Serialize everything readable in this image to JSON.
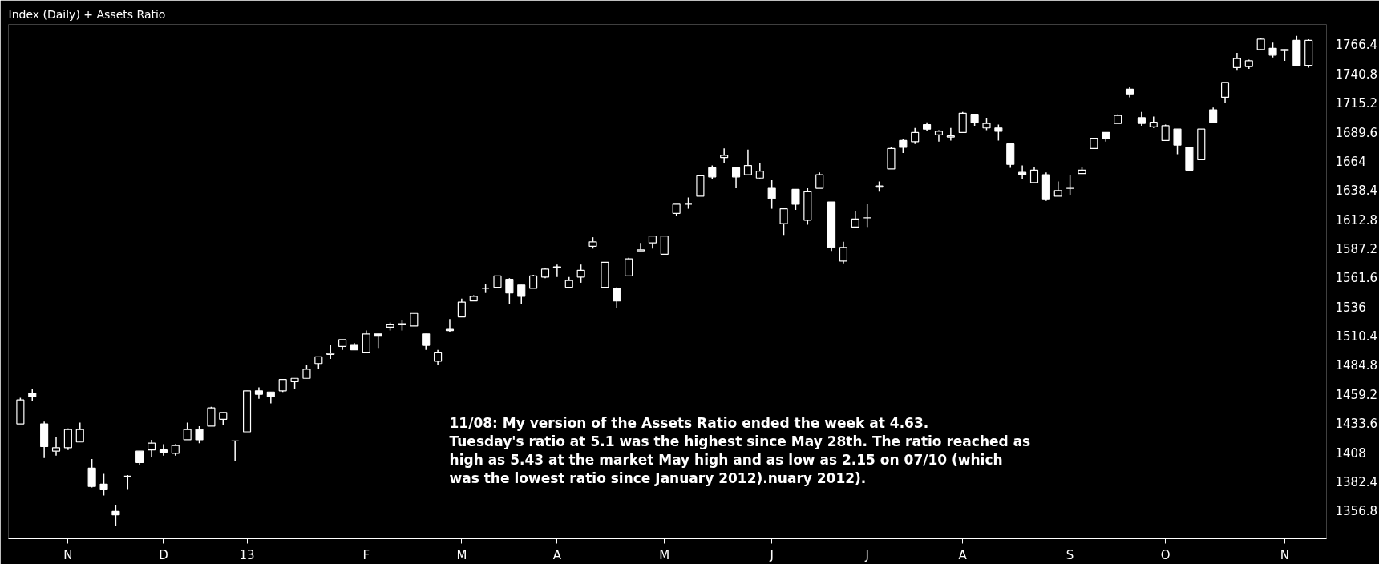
{
  "chart_data": {
    "type": "candlestick",
    "title": "Index (Daily) + Assets Ratio",
    "annotations": [
      "11/08: My version of the Assets Ratio ended the week at 4.63.\nTuesday's ratio at 5.1 was the highest since May 28th. The ratio reached as\nhigh as 5.43 at the market May high and as low as 2.15 on 07/10 (which\nwas the lowest ratio since January 2012).nuary 2012)."
    ],
    "color": "#ffffff",
    "categories": [
      null,
      null,
      null,
      null,
      "N",
      null,
      null,
      null,
      null,
      null,
      null,
      null,
      "D",
      null,
      null,
      null,
      null,
      null,
      null,
      "13",
      null,
      null,
      null,
      null,
      null,
      null,
      null,
      null,
      null,
      "F",
      null,
      null,
      null,
      null,
      null,
      null,
      null,
      "M",
      null,
      null,
      null,
      null,
      null,
      null,
      null,
      "A",
      null,
      null,
      null,
      null,
      null,
      null,
      null,
      null,
      "M",
      null,
      null,
      null,
      null,
      null,
      null,
      null,
      null,
      "J",
      null,
      null,
      null,
      null,
      null,
      null,
      null,
      "J",
      null,
      null,
      null,
      null,
      null,
      null,
      null,
      "A",
      null,
      null,
      null,
      null,
      null,
      null,
      null,
      null,
      "S",
      null,
      null,
      null,
      null,
      null,
      null,
      null,
      "O",
      null,
      null,
      null,
      null,
      null,
      null,
      null,
      null,
      null,
      "N",
      null,
      null
    ],
    "ohlc": [
      [
        1433,
        1456,
        1433,
        1454
      ],
      [
        1460,
        1464,
        1453,
        1457
      ],
      [
        1433,
        1435,
        1403,
        1413
      ],
      [
        1409,
        1421,
        1405,
        1412
      ],
      [
        1412,
        1429,
        1410,
        1428
      ],
      [
        1417,
        1434,
        1417,
        1428
      ],
      [
        1394,
        1402,
        1377,
        1378
      ],
      [
        1380,
        1389,
        1370,
        1375
      ],
      [
        1356,
        1362,
        1343,
        1353
      ],
      [
        1387,
        1388,
        1375,
        1387
      ],
      [
        1409,
        1409,
        1397,
        1399
      ],
      [
        1410,
        1419,
        1404,
        1416
      ],
      [
        1410,
        1415,
        1405,
        1408
      ],
      [
        1407,
        1415,
        1405,
        1414
      ],
      [
        1419,
        1434,
        1419,
        1428
      ],
      [
        1428,
        1431,
        1416,
        1419
      ],
      [
        1431,
        1448,
        1431,
        1447
      ],
      [
        1437,
        1443,
        1432,
        1443
      ],
      [
        1418,
        1418,
        1400,
        1418
      ],
      [
        1426,
        1462,
        1426,
        1462
      ],
      [
        1462,
        1465,
        1455,
        1459
      ],
      [
        1461,
        1461,
        1451,
        1457
      ],
      [
        1462,
        1472,
        1461,
        1472
      ],
      [
        1470,
        1473,
        1464,
        1473
      ],
      [
        1473,
        1485,
        1473,
        1481
      ],
      [
        1486,
        1492,
        1481,
        1492
      ],
      [
        1494,
        1502,
        1490,
        1495
      ],
      [
        1501,
        1507,
        1498,
        1507
      ],
      [
        1502,
        1504,
        1498,
        1498
      ],
      [
        1496,
        1515,
        1496,
        1512
      ],
      [
        1512,
        1512,
        1499,
        1510
      ],
      [
        1518,
        1522,
        1515,
        1520
      ],
      [
        1520,
        1524,
        1515,
        1521
      ],
      [
        1519,
        1530,
        1519,
        1530
      ],
      [
        1512,
        1512,
        1498,
        1502
      ],
      [
        1488,
        1498,
        1485,
        1496
      ],
      [
        1516,
        1525,
        1514,
        1515
      ],
      [
        1527,
        1543,
        1527,
        1540
      ],
      [
        1541,
        1546,
        1541,
        1545
      ],
      [
        1552,
        1556,
        1548,
        1552
      ],
      [
        1553,
        1563,
        1553,
        1563
      ],
      [
        1560,
        1561,
        1538,
        1548
      ],
      [
        1555,
        1555,
        1538,
        1545
      ],
      [
        1552,
        1564,
        1552,
        1563
      ],
      [
        1562,
        1570,
        1561,
        1569
      ],
      [
        1571,
        1573,
        1562,
        1570
      ],
      [
        1553,
        1562,
        1553,
        1559
      ],
      [
        1562,
        1573,
        1557,
        1568
      ],
      [
        1589,
        1597,
        1587,
        1593
      ],
      [
        1553,
        1575,
        1553,
        1575
      ],
      [
        1552,
        1553,
        1535,
        1541
      ],
      [
        1563,
        1579,
        1563,
        1578
      ],
      [
        1585,
        1592,
        1585,
        1586
      ],
      [
        1592,
        1598,
        1587,
        1598
      ],
      [
        1582,
        1598,
        1582,
        1598
      ],
      [
        1618,
        1626,
        1616,
        1626
      ],
      [
        1626,
        1632,
        1622,
        1626
      ],
      [
        1633,
        1651,
        1633,
        1651
      ],
      [
        1658,
        1660,
        1648,
        1650
      ],
      [
        1667,
        1675,
        1662,
        1669
      ],
      [
        1658,
        1659,
        1640,
        1650
      ],
      [
        1652,
        1674,
        1652,
        1660
      ],
      [
        1649,
        1662,
        1648,
        1655
      ],
      [
        1640,
        1647,
        1622,
        1631
      ],
      [
        1609,
        1622,
        1599,
        1622
      ],
      [
        1639,
        1639,
        1621,
        1626
      ],
      [
        1612,
        1640,
        1608,
        1637
      ],
      [
        1640,
        1654,
        1640,
        1652
      ],
      [
        1628,
        1628,
        1585,
        1588
      ],
      [
        1576,
        1593,
        1574,
        1588
      ],
      [
        1606,
        1620,
        1606,
        1613
      ],
      [
        1614,
        1626,
        1606,
        1614
      ],
      [
        1642,
        1646,
        1637,
        1641
      ],
      [
        1657,
        1676,
        1657,
        1675
      ],
      [
        1682,
        1683,
        1671,
        1676
      ],
      [
        1681,
        1693,
        1679,
        1689
      ],
      [
        1696,
        1698,
        1690,
        1692
      ],
      [
        1687,
        1691,
        1681,
        1690
      ],
      [
        1685,
        1693,
        1682,
        1686
      ],
      [
        1689,
        1707,
        1689,
        1706
      ],
      [
        1705,
        1705,
        1695,
        1698
      ],
      [
        1693,
        1702,
        1691,
        1697
      ],
      [
        1693,
        1696,
        1682,
        1690
      ],
      [
        1679,
        1679,
        1658,
        1661
      ],
      [
        1654,
        1660,
        1648,
        1652
      ],
      [
        1645,
        1659,
        1645,
        1656
      ],
      [
        1652,
        1654,
        1629,
        1630
      ],
      [
        1633,
        1646,
        1633,
        1638
      ],
      [
        1640,
        1652,
        1634,
        1640
      ],
      [
        1653,
        1659,
        1653,
        1656
      ],
      [
        1675,
        1684,
        1675,
        1684
      ],
      [
        1689,
        1689,
        1681,
        1684
      ],
      [
        1697,
        1705,
        1697,
        1704
      ],
      [
        1727,
        1729,
        1720,
        1723
      ],
      [
        1702,
        1707,
        1695,
        1697
      ],
      [
        1694,
        1703,
        1693,
        1698
      ],
      [
        1682,
        1696,
        1682,
        1695
      ],
      [
        1692,
        1692,
        1670,
        1678
      ],
      [
        1676,
        1676,
        1655,
        1656
      ],
      [
        1665,
        1692,
        1665,
        1692
      ],
      [
        1709,
        1711,
        1698,
        1698
      ],
      [
        1720,
        1733,
        1715,
        1733
      ],
      [
        1746,
        1759,
        1744,
        1754
      ],
      [
        1747,
        1753,
        1745,
        1752
      ],
      [
        1762,
        1772,
        1762,
        1771
      ],
      [
        1763,
        1768,
        1755,
        1757
      ],
      [
        1761,
        1762,
        1752,
        1762
      ],
      [
        1770,
        1774,
        1747,
        1748
      ],
      [
        1748,
        1771,
        1746,
        1770
      ]
    ],
    "ylim": [
      1332,
      1784
    ],
    "yticks": [
      1356.8,
      1382.4,
      1408,
      1433.6,
      1459.2,
      1484.8,
      1510.4,
      1536,
      1561.6,
      1587.2,
      1612.8,
      1638.4,
      1664,
      1689.6,
      1715.2,
      1740.8,
      1766.4
    ],
    "grid": false
  }
}
